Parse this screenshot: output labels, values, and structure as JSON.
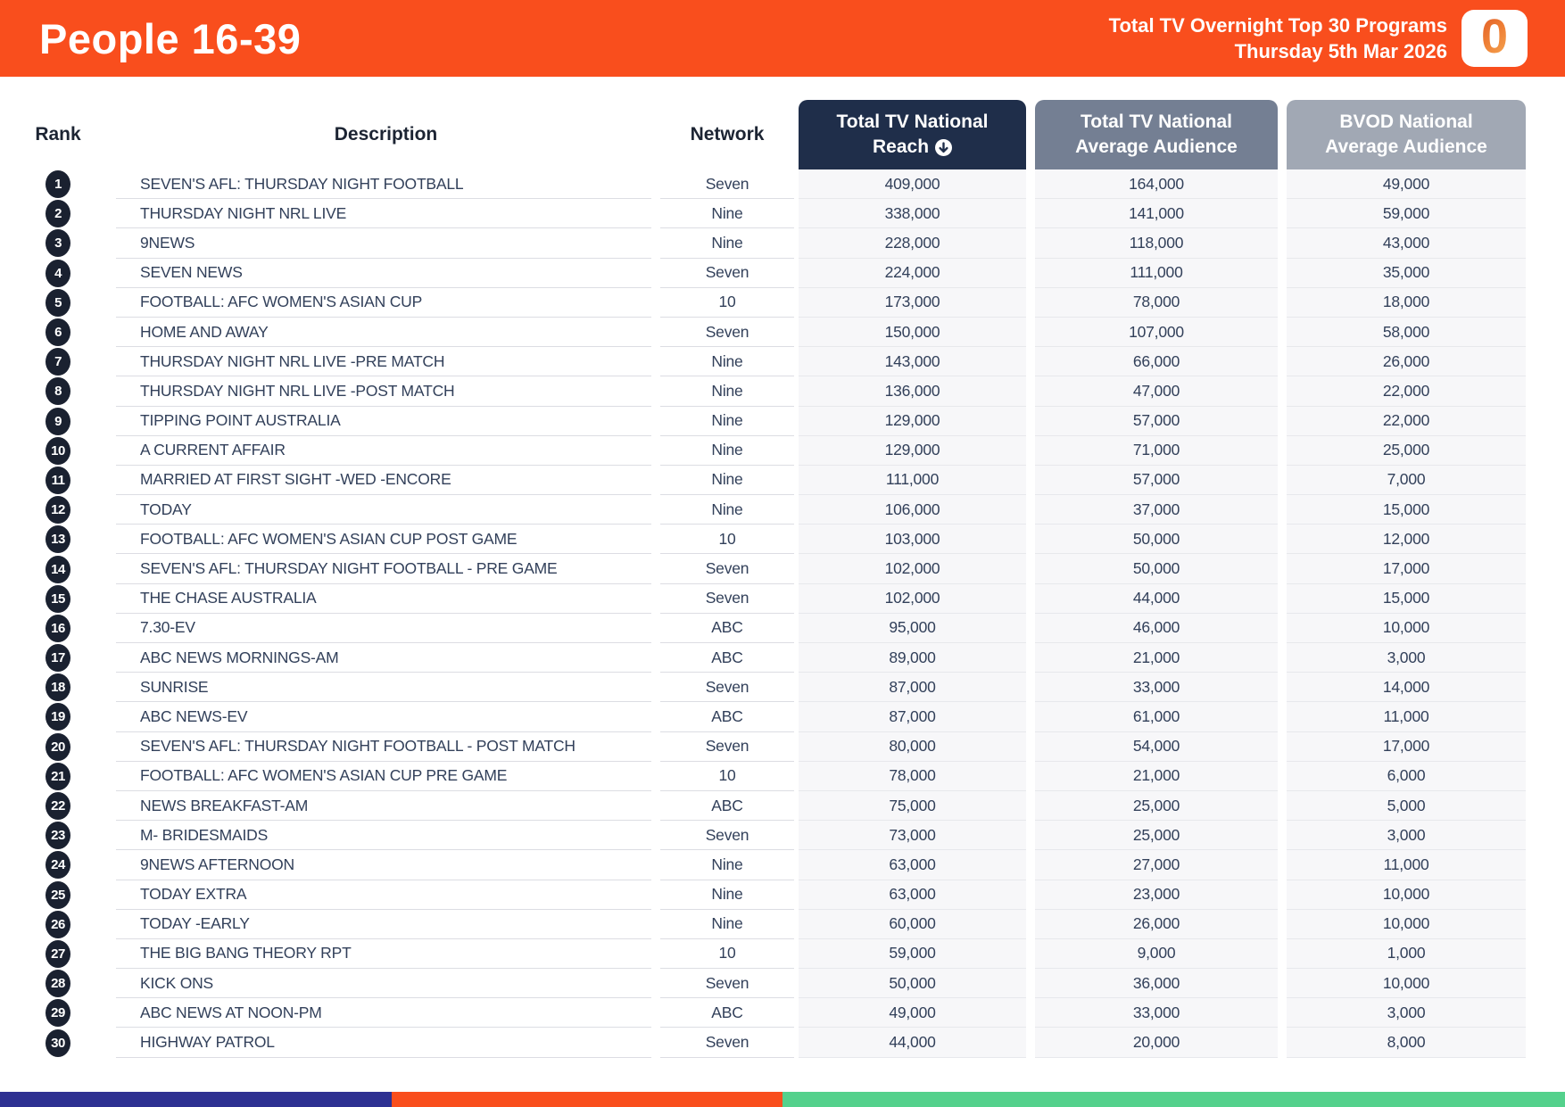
{
  "header": {
    "title": "People 16-39",
    "report_title": "Total TV Overnight Top 30 Programs",
    "report_date": "Thursday 5th Mar 2026",
    "logo_text": "0",
    "bg_color": "#f94e1d"
  },
  "table": {
    "rank_header": "Rank",
    "description_header": "Description",
    "network_header": "Network",
    "metric_headers": [
      {
        "line1": "Total TV National",
        "line2": "Reach",
        "sorted": "descending",
        "bg": "#1f2e4a"
      },
      {
        "line1": "Total TV National",
        "line2": "Average Audience",
        "sorted": "",
        "bg": "#747f93"
      },
      {
        "line1": "BVOD National",
        "line2": "Average Audience",
        "sorted": "",
        "bg": "#a1a8b4"
      }
    ],
    "rows": [
      {
        "rank": "1",
        "description": "SEVEN'S AFL: THURSDAY NIGHT FOOTBALL",
        "network": "Seven",
        "reach": "409,000",
        "avg_audience": "164,000",
        "bvod_audience": "49,000"
      },
      {
        "rank": "2",
        "description": "THURSDAY NIGHT NRL LIVE",
        "network": "Nine",
        "reach": "338,000",
        "avg_audience": "141,000",
        "bvod_audience": "59,000"
      },
      {
        "rank": "3",
        "description": "9NEWS",
        "network": "Nine",
        "reach": "228,000",
        "avg_audience": "118,000",
        "bvod_audience": "43,000"
      },
      {
        "rank": "4",
        "description": "SEVEN NEWS",
        "network": "Seven",
        "reach": "224,000",
        "avg_audience": "111,000",
        "bvod_audience": "35,000"
      },
      {
        "rank": "5",
        "description": "FOOTBALL: AFC WOMEN'S ASIAN CUP",
        "network": "10",
        "reach": "173,000",
        "avg_audience": "78,000",
        "bvod_audience": "18,000"
      },
      {
        "rank": "6",
        "description": "HOME AND AWAY",
        "network": "Seven",
        "reach": "150,000",
        "avg_audience": "107,000",
        "bvod_audience": "58,000"
      },
      {
        "rank": "7",
        "description": "THURSDAY NIGHT NRL LIVE -PRE MATCH",
        "network": "Nine",
        "reach": "143,000",
        "avg_audience": "66,000",
        "bvod_audience": "26,000"
      },
      {
        "rank": "8",
        "description": "THURSDAY NIGHT NRL LIVE -POST MATCH",
        "network": "Nine",
        "reach": "136,000",
        "avg_audience": "47,000",
        "bvod_audience": "22,000"
      },
      {
        "rank": "9",
        "description": "TIPPING POINT AUSTRALIA",
        "network": "Nine",
        "reach": "129,000",
        "avg_audience": "57,000",
        "bvod_audience": "22,000"
      },
      {
        "rank": "10",
        "description": "A CURRENT AFFAIR",
        "network": "Nine",
        "reach": "129,000",
        "avg_audience": "71,000",
        "bvod_audience": "25,000"
      },
      {
        "rank": "11",
        "description": "MARRIED AT FIRST SIGHT -WED -ENCORE",
        "network": "Nine",
        "reach": "111,000",
        "avg_audience": "57,000",
        "bvod_audience": "7,000"
      },
      {
        "rank": "12",
        "description": "TODAY",
        "network": "Nine",
        "reach": "106,000",
        "avg_audience": "37,000",
        "bvod_audience": "15,000"
      },
      {
        "rank": "13",
        "description": "FOOTBALL: AFC WOMEN'S ASIAN CUP POST GAME",
        "network": "10",
        "reach": "103,000",
        "avg_audience": "50,000",
        "bvod_audience": "12,000"
      },
      {
        "rank": "14",
        "description": "SEVEN'S AFL: THURSDAY NIGHT FOOTBALL - PRE GAME",
        "network": "Seven",
        "reach": "102,000",
        "avg_audience": "50,000",
        "bvod_audience": "17,000"
      },
      {
        "rank": "15",
        "description": "THE CHASE AUSTRALIA",
        "network": "Seven",
        "reach": "102,000",
        "avg_audience": "44,000",
        "bvod_audience": "15,000"
      },
      {
        "rank": "16",
        "description": "7.30-EV",
        "network": "ABC",
        "reach": "95,000",
        "avg_audience": "46,000",
        "bvod_audience": "10,000"
      },
      {
        "rank": "17",
        "description": "ABC NEWS MORNINGS-AM",
        "network": "ABC",
        "reach": "89,000",
        "avg_audience": "21,000",
        "bvod_audience": "3,000"
      },
      {
        "rank": "18",
        "description": "SUNRISE",
        "network": "Seven",
        "reach": "87,000",
        "avg_audience": "33,000",
        "bvod_audience": "14,000"
      },
      {
        "rank": "19",
        "description": "ABC NEWS-EV",
        "network": "ABC",
        "reach": "87,000",
        "avg_audience": "61,000",
        "bvod_audience": "11,000"
      },
      {
        "rank": "20",
        "description": "SEVEN'S AFL: THURSDAY NIGHT FOOTBALL - POST MATCH",
        "network": "Seven",
        "reach": "80,000",
        "avg_audience": "54,000",
        "bvod_audience": "17,000"
      },
      {
        "rank": "21",
        "description": "FOOTBALL: AFC WOMEN'S ASIAN CUP PRE GAME",
        "network": "10",
        "reach": "78,000",
        "avg_audience": "21,000",
        "bvod_audience": "6,000"
      },
      {
        "rank": "22",
        "description": "NEWS BREAKFAST-AM",
        "network": "ABC",
        "reach": "75,000",
        "avg_audience": "25,000",
        "bvod_audience": "5,000"
      },
      {
        "rank": "23",
        "description": "M- BRIDESMAIDS",
        "network": "Seven",
        "reach": "73,000",
        "avg_audience": "25,000",
        "bvod_audience": "3,000"
      },
      {
        "rank": "24",
        "description": "9NEWS AFTERNOON",
        "network": "Nine",
        "reach": "63,000",
        "avg_audience": "27,000",
        "bvod_audience": "11,000"
      },
      {
        "rank": "25",
        "description": "TODAY EXTRA",
        "network": "Nine",
        "reach": "63,000",
        "avg_audience": "23,000",
        "bvod_audience": "10,000"
      },
      {
        "rank": "26",
        "description": "TODAY -EARLY",
        "network": "Nine",
        "reach": "60,000",
        "avg_audience": "26,000",
        "bvod_audience": "10,000"
      },
      {
        "rank": "27",
        "description": "THE BIG BANG THEORY RPT",
        "network": "10",
        "reach": "59,000",
        "avg_audience": "9,000",
        "bvod_audience": "1,000"
      },
      {
        "rank": "28",
        "description": "KICK ONS",
        "network": "Seven",
        "reach": "50,000",
        "avg_audience": "36,000",
        "bvod_audience": "10,000"
      },
      {
        "rank": "29",
        "description": "ABC NEWS AT NOON-PM",
        "network": "ABC",
        "reach": "49,000",
        "avg_audience": "33,000",
        "bvod_audience": "3,000"
      },
      {
        "rank": "30",
        "description": "HIGHWAY PATROL",
        "network": "Seven",
        "reach": "44,000",
        "avg_audience": "20,000",
        "bvod_audience": "8,000"
      }
    ]
  },
  "footer": {
    "segments": [
      {
        "color": "#2e3192",
        "width_pct": 25
      },
      {
        "color": "#f94e1d",
        "width_pct": 25
      },
      {
        "color": "#54d18c",
        "width_pct": 50
      }
    ]
  }
}
